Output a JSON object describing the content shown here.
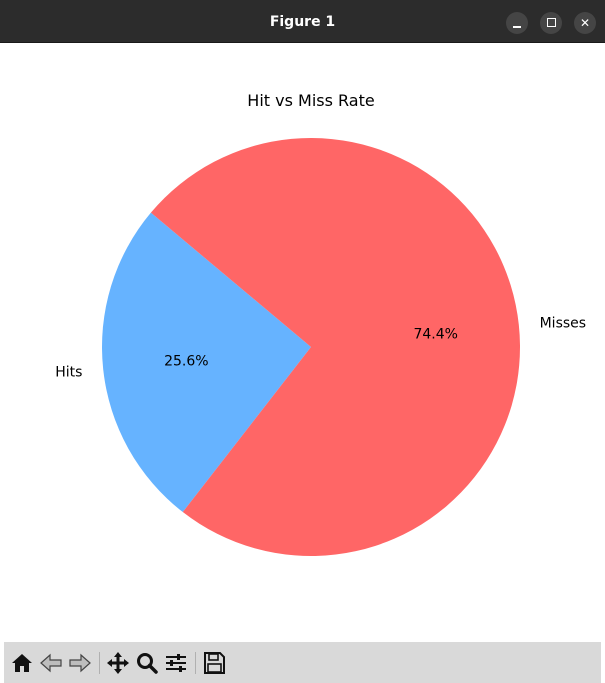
{
  "window": {
    "title": "Figure 1"
  },
  "toolbar": {
    "buttons": [
      {
        "name": "home-button",
        "icon": "home-icon"
      },
      {
        "name": "back-button",
        "icon": "arrow-left-icon"
      },
      {
        "name": "forward-button",
        "icon": "arrow-right-icon"
      },
      {
        "name": "pan-button",
        "icon": "move-icon"
      },
      {
        "name": "zoom-button",
        "icon": "magnifier-icon"
      },
      {
        "name": "configure-subplots-button",
        "icon": "sliders-icon"
      },
      {
        "name": "save-button",
        "icon": "floppy-disk-icon"
      }
    ]
  },
  "chart_data": {
    "type": "pie",
    "title": "Hit vs Miss Rate",
    "labels": [
      "Hits",
      "Misses"
    ],
    "values": [
      25.6,
      74.4
    ],
    "autopct_labels": [
      "25.6%",
      "74.4%"
    ],
    "colors": [
      "#66b3ff",
      "#ff6666"
    ],
    "startangle": 140
  }
}
